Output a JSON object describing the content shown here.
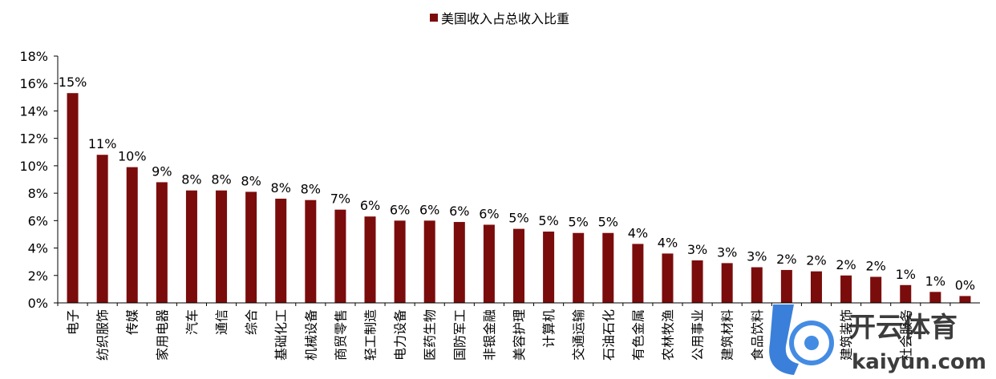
{
  "chart_data": {
    "type": "bar",
    "legend_position": "top-center",
    "grid": false,
    "ylim": [
      0,
      18
    ],
    "yticks": [
      "0%",
      "2%",
      "4%",
      "6%",
      "8%",
      "10%",
      "12%",
      "14%",
      "16%",
      "18%"
    ],
    "colors": {
      "bar": "#7B0C0C",
      "axis": "#000000"
    },
    "series": [
      {
        "name": "美国收入占总收入比重",
        "values": [
          15.3,
          10.8,
          9.9,
          8.8,
          8.2,
          8.2,
          8.1,
          7.6,
          7.5,
          6.8,
          6.3,
          6.0,
          6.0,
          5.9,
          5.7,
          5.4,
          5.2,
          5.1,
          5.1,
          4.3,
          3.6,
          3.1,
          2.9,
          2.6,
          2.4,
          2.3,
          2.0,
          1.9,
          1.3,
          0.8,
          0.5
        ],
        "labels": [
          "15%",
          "11%",
          "10%",
          "9%",
          "8%",
          "8%",
          "8%",
          "8%",
          "8%",
          "7%",
          "6%",
          "6%",
          "6%",
          "6%",
          "6%",
          "5%",
          "5%",
          "5%",
          "5%",
          "4%",
          "4%",
          "3%",
          "3%",
          "3%",
          "2%",
          "2%",
          "2%",
          "2%",
          "1%",
          "1%",
          "0%"
        ]
      }
    ],
    "categories": [
      "电子",
      "纺织服饰",
      "传媒",
      "家用电器",
      "汽车",
      "通信",
      "综合",
      "基础化工",
      "机械设备",
      "商贸零售",
      "轻工制造",
      "电力设备",
      "医药生物",
      "国防军工",
      "非银金融",
      "美容护理",
      "计算机",
      "交通运输",
      "石油石化",
      "有色金属",
      "农林牧渔",
      "公用事业",
      "建筑材料",
      "食品饮料",
      "",
      "",
      "建筑装饰",
      "",
      "社会服务",
      "",
      ""
    ]
  },
  "watermark": {
    "brand_cn": "开云体育",
    "brand_url": "kaiyun.com"
  }
}
